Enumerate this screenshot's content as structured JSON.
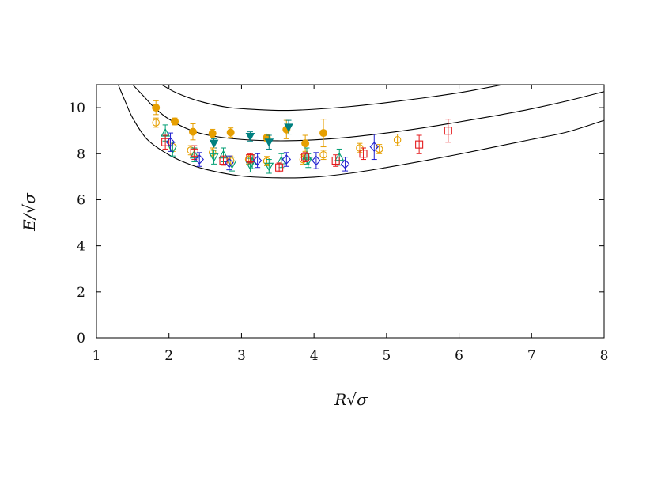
{
  "chart_data": {
    "type": "scatter",
    "title": "",
    "xlabel": "R√σ",
    "ylabel": "E/√σ",
    "xlim": [
      1,
      8
    ],
    "ylim": [
      0,
      11
    ],
    "xticks": [
      1,
      2,
      3,
      4,
      5,
      6,
      7,
      8
    ],
    "yticks": [
      0,
      2,
      4,
      6,
      8,
      10
    ],
    "grid": false,
    "legend": "none",
    "curves": [
      {
        "color": "#000000",
        "points": [
          [
            1.3,
            11.0
          ],
          [
            1.4,
            10.25
          ],
          [
            1.5,
            9.55
          ],
          [
            1.7,
            8.62
          ],
          [
            2.0,
            7.95
          ],
          [
            2.3,
            7.52
          ],
          [
            2.6,
            7.25
          ],
          [
            3.0,
            7.03
          ],
          [
            3.5,
            6.95
          ],
          [
            4.0,
            6.98
          ],
          [
            4.5,
            7.15
          ],
          [
            5.0,
            7.4
          ],
          [
            5.5,
            7.68
          ],
          [
            6.0,
            7.98
          ],
          [
            6.5,
            8.3
          ],
          [
            7.0,
            8.62
          ],
          [
            7.5,
            8.95
          ],
          [
            8.0,
            9.45
          ]
        ]
      },
      {
        "color": "#000000",
        "points": [
          [
            1.5,
            11.0
          ],
          [
            1.65,
            10.5
          ],
          [
            1.8,
            10.0
          ],
          [
            2.0,
            9.5
          ],
          [
            2.3,
            9.02
          ],
          [
            2.6,
            8.77
          ],
          [
            3.0,
            8.62
          ],
          [
            3.5,
            8.56
          ],
          [
            4.0,
            8.6
          ],
          [
            4.5,
            8.72
          ],
          [
            5.0,
            8.9
          ],
          [
            5.5,
            9.12
          ],
          [
            6.0,
            9.38
          ],
          [
            6.5,
            9.65
          ],
          [
            7.0,
            9.95
          ],
          [
            7.5,
            10.3
          ],
          [
            8.0,
            10.7
          ]
        ]
      },
      {
        "color": "#000000",
        "points": [
          [
            1.9,
            11.0
          ],
          [
            2.1,
            10.65
          ],
          [
            2.4,
            10.3
          ],
          [
            2.8,
            10.02
          ],
          [
            3.2,
            9.92
          ],
          [
            3.6,
            9.88
          ],
          [
            4.0,
            9.93
          ],
          [
            4.5,
            10.05
          ],
          [
            5.0,
            10.22
          ],
          [
            5.5,
            10.42
          ],
          [
            6.0,
            10.65
          ],
          [
            6.3,
            10.82
          ],
          [
            6.6,
            11.0
          ]
        ]
      }
    ],
    "series": [
      {
        "marker": "filled-circle",
        "color": "#e69f00",
        "points": [
          {
            "x": 1.82,
            "y": 10.0,
            "err": 0.3
          },
          {
            "x": 2.08,
            "y": 9.4,
            "err": 0.15
          },
          {
            "x": 2.33,
            "y": 8.95,
            "err": 0.35
          },
          {
            "x": 2.6,
            "y": 8.88,
            "err": 0.18
          },
          {
            "x": 2.85,
            "y": 8.92,
            "err": 0.2
          },
          {
            "x": 3.35,
            "y": 8.7,
            "err": 0.15
          },
          {
            "x": 3.62,
            "y": 9.05,
            "err": 0.4
          },
          {
            "x": 3.88,
            "y": 8.45,
            "err": 0.35
          },
          {
            "x": 4.13,
            "y": 8.9,
            "err": 0.6
          }
        ]
      },
      {
        "marker": "filled-triangle-down",
        "color": "#008080",
        "points": [
          {
            "x": 2.62,
            "y": 8.45,
            "err": 0.2
          },
          {
            "x": 3.12,
            "y": 8.75,
            "err": 0.2
          },
          {
            "x": 3.38,
            "y": 8.5,
            "err": 0.3
          },
          {
            "x": 3.65,
            "y": 9.15,
            "err": 0.3
          }
        ]
      },
      {
        "marker": "open-circle",
        "color": "#e69f00",
        "points": [
          {
            "x": 1.82,
            "y": 9.35,
            "err": 0.2
          },
          {
            "x": 2.05,
            "y": 8.3,
            "err": 0.2
          },
          {
            "x": 2.3,
            "y": 8.15,
            "err": 0.2
          },
          {
            "x": 2.6,
            "y": 8.05,
            "err": 0.2
          },
          {
            "x": 2.85,
            "y": 7.7,
            "err": 0.2
          },
          {
            "x": 3.1,
            "y": 7.75,
            "err": 0.2
          },
          {
            "x": 3.35,
            "y": 7.68,
            "err": 0.2
          },
          {
            "x": 3.85,
            "y": 7.75,
            "err": 0.2
          },
          {
            "x": 4.13,
            "y": 7.95,
            "err": 0.2
          },
          {
            "x": 4.63,
            "y": 8.25,
            "err": 0.2
          },
          {
            "x": 4.9,
            "y": 8.2,
            "err": 0.2
          },
          {
            "x": 5.15,
            "y": 8.6,
            "err": 0.25
          }
        ]
      },
      {
        "marker": "open-triangle-up",
        "color": "#009e73",
        "points": [
          {
            "x": 1.95,
            "y": 8.9,
            "err": 0.35
          },
          {
            "x": 2.35,
            "y": 7.95,
            "err": 0.3
          },
          {
            "x": 2.75,
            "y": 7.95,
            "err": 0.3
          },
          {
            "x": 3.15,
            "y": 7.65,
            "err": 0.3
          },
          {
            "x": 3.55,
            "y": 7.7,
            "err": 0.3
          },
          {
            "x": 3.9,
            "y": 7.9,
            "err": 0.35
          },
          {
            "x": 4.35,
            "y": 7.85,
            "err": 0.35
          }
        ]
      },
      {
        "marker": "open-triangle-down",
        "color": "#009e73",
        "points": [
          {
            "x": 2.05,
            "y": 8.2,
            "err": 0.3
          },
          {
            "x": 2.62,
            "y": 7.85,
            "err": 0.3
          },
          {
            "x": 2.87,
            "y": 7.55,
            "err": 0.3
          },
          {
            "x": 3.12,
            "y": 7.5,
            "err": 0.3
          },
          {
            "x": 3.38,
            "y": 7.45,
            "err": 0.3
          },
          {
            "x": 3.92,
            "y": 7.7,
            "err": 0.3
          }
        ]
      },
      {
        "marker": "open-square",
        "color": "#e41a1c",
        "points": [
          {
            "x": 1.95,
            "y": 8.5,
            "err": 0.3
          },
          {
            "x": 2.35,
            "y": 8.05,
            "err": 0.3
          },
          {
            "x": 2.75,
            "y": 7.7,
            "err": 0.2
          },
          {
            "x": 3.12,
            "y": 7.8,
            "err": 0.2
          },
          {
            "x": 3.52,
            "y": 7.4,
            "err": 0.2
          },
          {
            "x": 3.88,
            "y": 7.85,
            "err": 0.2
          },
          {
            "x": 4.3,
            "y": 7.7,
            "err": 0.25
          },
          {
            "x": 4.68,
            "y": 8.0,
            "err": 0.25
          },
          {
            "x": 5.45,
            "y": 8.4,
            "err": 0.4
          },
          {
            "x": 5.85,
            "y": 9.0,
            "err": 0.5
          }
        ]
      },
      {
        "marker": "open-diamond",
        "color": "#1f1fcf",
        "points": [
          {
            "x": 2.02,
            "y": 8.5,
            "err": 0.4
          },
          {
            "x": 2.42,
            "y": 7.75,
            "err": 0.3
          },
          {
            "x": 2.83,
            "y": 7.6,
            "err": 0.3
          },
          {
            "x": 3.22,
            "y": 7.7,
            "err": 0.3
          },
          {
            "x": 3.62,
            "y": 7.75,
            "err": 0.3
          },
          {
            "x": 4.03,
            "y": 7.7,
            "err": 0.35
          },
          {
            "x": 4.43,
            "y": 7.55,
            "err": 0.3
          },
          {
            "x": 4.83,
            "y": 8.3,
            "err": 0.55
          }
        ]
      }
    ]
  }
}
